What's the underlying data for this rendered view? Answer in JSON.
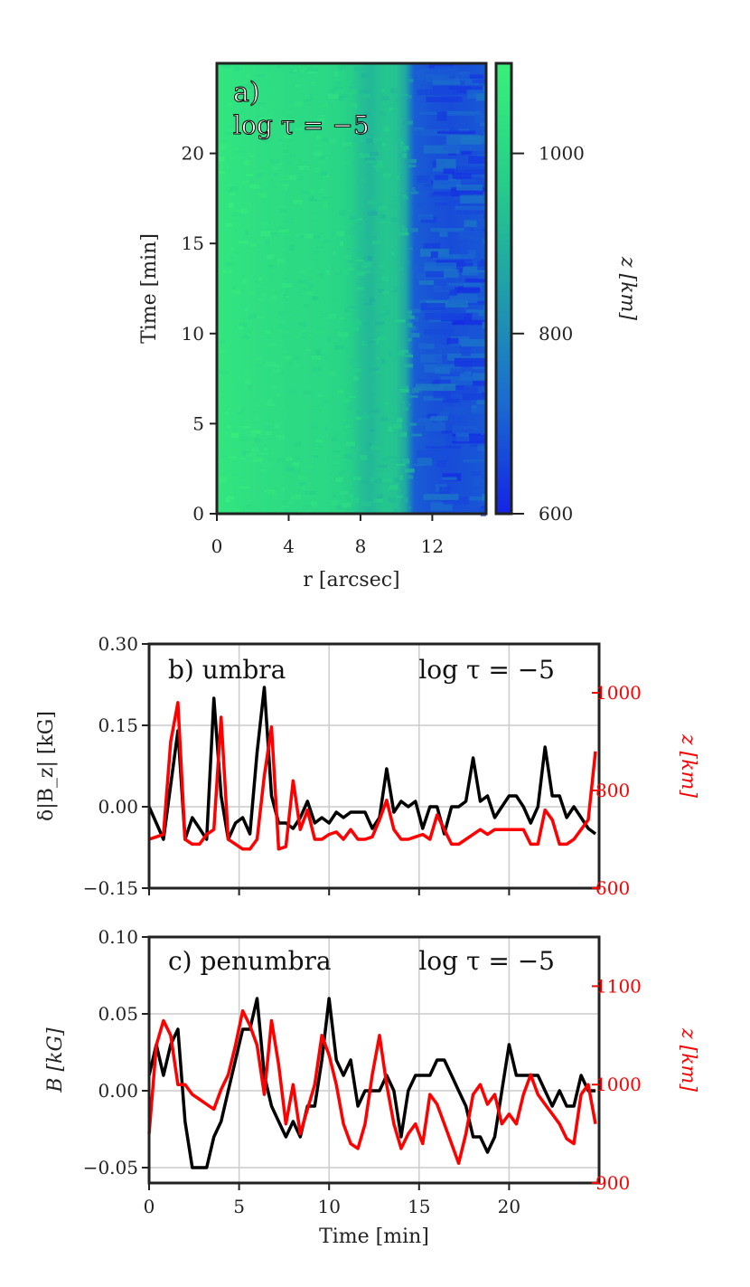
{
  "chart_data": [
    {
      "type": "heatmap",
      "panel_label": "a)",
      "annotation": "log τ = −5",
      "xlabel": "r [arcsec]",
      "ylabel": "Time [min]",
      "x_ticks": [
        0,
        4,
        8,
        12
      ],
      "y_ticks": [
        0,
        5,
        10,
        15,
        20
      ],
      "xlim": [
        0,
        15
      ],
      "ylim": [
        0,
        25
      ],
      "colorbar": {
        "label": "z [km]",
        "range": [
          600,
          1100
        ],
        "ticks": [
          600,
          800,
          1000
        ],
        "colors": [
          "#1424e6",
          "#1a6ccf",
          "#1fa0a8",
          "#26d088",
          "#3af07a"
        ]
      },
      "profile_r": [
        0,
        1,
        2,
        3,
        4,
        5,
        6,
        7,
        7.8,
        8.3,
        8.8,
        9.5,
        10.2,
        10.6,
        11,
        12,
        13,
        14,
        15
      ],
      "profile_z": [
        1060,
        1045,
        1035,
        1025,
        1015,
        1010,
        1005,
        990,
        960,
        900,
        930,
        950,
        930,
        850,
        700,
        680,
        670,
        680,
        690
      ]
    },
    {
      "type": "line",
      "panel_label": "b) umbra",
      "annotation": "log τ = −5",
      "xlabel": "",
      "ylabel": "δ|B_z| [kG]",
      "ylabel_right": "z [km]",
      "xlim": [
        0,
        25
      ],
      "ylim": [
        -0.15,
        0.3
      ],
      "ylim_right": [
        600,
        1100
      ],
      "x_ticks": [
        0,
        5,
        10,
        15,
        20
      ],
      "y_ticks": [
        -0.15,
        0.0,
        0.15,
        0.3
      ],
      "y_tick_labels": [
        "−0.15",
        "0.00",
        "0.15",
        "0.30"
      ],
      "y_right_ticks": [
        600,
        800,
        1000
      ],
      "series": [
        {
          "name": "δ|B_z|",
          "color": "#000000",
          "axis": "left",
          "x": [
            0,
            0.4,
            0.8,
            1.2,
            1.6,
            2.0,
            2.4,
            2.8,
            3.2,
            3.6,
            4.0,
            4.4,
            4.8,
            5.2,
            5.6,
            6.0,
            6.4,
            6.8,
            7.2,
            7.6,
            8.0,
            8.4,
            8.8,
            9.2,
            9.6,
            10.0,
            10.4,
            10.8,
            11.2,
            11.6,
            12.0,
            12.4,
            12.8,
            13.2,
            13.6,
            14.0,
            14.4,
            14.8,
            15.2,
            15.6,
            16.0,
            16.4,
            16.8,
            17.2,
            17.6,
            18.0,
            18.4,
            18.8,
            19.2,
            19.6,
            20.0,
            20.4,
            20.8,
            21.2,
            21.6,
            22.0,
            22.4,
            22.8,
            23.2,
            23.6,
            24.0,
            24.4,
            24.8
          ],
          "values": [
            0.0,
            -0.03,
            -0.06,
            0.04,
            0.14,
            -0.06,
            -0.02,
            -0.04,
            -0.06,
            0.2,
            0.02,
            -0.06,
            -0.03,
            -0.02,
            -0.05,
            0.1,
            0.22,
            0.02,
            -0.03,
            -0.03,
            -0.04,
            -0.02,
            0.01,
            -0.03,
            -0.02,
            -0.03,
            -0.01,
            -0.02,
            -0.01,
            -0.01,
            -0.01,
            -0.04,
            -0.02,
            0.07,
            -0.01,
            0.01,
            0.0,
            0.01,
            -0.04,
            0.0,
            0.0,
            -0.05,
            0.0,
            0.0,
            0.01,
            0.09,
            0.01,
            0.02,
            -0.02,
            0.0,
            0.02,
            0.02,
            0.0,
            -0.03,
            0.0,
            0.11,
            0.02,
            0.02,
            -0.02,
            0.0,
            -0.02,
            -0.04,
            -0.05
          ]
        },
        {
          "name": "z",
          "color": "#ff0000",
          "axis": "right",
          "x": [
            0,
            0.4,
            0.8,
            1.2,
            1.6,
            2.0,
            2.4,
            2.8,
            3.2,
            3.6,
            4.0,
            4.4,
            4.8,
            5.2,
            5.6,
            6.0,
            6.4,
            6.8,
            7.2,
            7.6,
            8.0,
            8.4,
            8.8,
            9.2,
            9.6,
            10.0,
            10.4,
            10.8,
            11.2,
            11.6,
            12.0,
            12.4,
            12.8,
            13.2,
            13.6,
            14.0,
            14.4,
            14.8,
            15.2,
            15.6,
            16.0,
            16.4,
            16.8,
            17.2,
            17.6,
            18.0,
            18.4,
            18.8,
            19.2,
            19.6,
            20.0,
            20.4,
            20.8,
            21.2,
            21.6,
            22.0,
            22.4,
            22.8,
            23.2,
            23.6,
            24.0,
            24.4,
            24.8
          ],
          "values": [
            700,
            705,
            710,
            900,
            980,
            700,
            690,
            690,
            710,
            720,
            950,
            700,
            690,
            680,
            680,
            700,
            830,
            930,
            680,
            685,
            820,
            720,
            760,
            700,
            700,
            710,
            715,
            700,
            720,
            700,
            700,
            705,
            740,
            780,
            720,
            700,
            700,
            705,
            710,
            700,
            750,
            720,
            690,
            690,
            700,
            710,
            720,
            710,
            720,
            720,
            720,
            720,
            720,
            690,
            690,
            760,
            740,
            690,
            690,
            700,
            720,
            740,
            880
          ]
        }
      ]
    },
    {
      "type": "line",
      "panel_label": "c) penumbra",
      "annotation": "log τ = −5",
      "xlabel": "Time [min]",
      "ylabel": "B [kG]",
      "ylabel_right": "z [km]",
      "xlim": [
        0,
        25
      ],
      "ylim": [
        -0.06,
        0.1
      ],
      "ylim_right": [
        900,
        1150
      ],
      "x_ticks": [
        0,
        5,
        10,
        15,
        20
      ],
      "x_tick_labels": [
        "0",
        "5",
        "10",
        "15",
        "20"
      ],
      "y_ticks": [
        -0.05,
        0.0,
        0.05,
        0.1
      ],
      "y_tick_labels": [
        "−0.05",
        "0.00",
        "0.05",
        "0.10"
      ],
      "y_right_ticks": [
        900,
        1000,
        1100
      ],
      "series": [
        {
          "name": "B",
          "color": "#000000",
          "axis": "left",
          "x": [
            0,
            0.4,
            0.8,
            1.2,
            1.6,
            2.0,
            2.4,
            2.8,
            3.2,
            3.6,
            4.0,
            4.4,
            4.8,
            5.2,
            5.6,
            6.0,
            6.4,
            6.8,
            7.2,
            7.6,
            8.0,
            8.4,
            8.8,
            9.2,
            9.6,
            10.0,
            10.4,
            10.8,
            11.2,
            11.6,
            12.0,
            12.4,
            12.8,
            13.2,
            13.6,
            14.0,
            14.4,
            14.8,
            15.2,
            15.6,
            16.0,
            16.4,
            16.8,
            17.2,
            17.6,
            18.0,
            18.4,
            18.8,
            19.2,
            19.6,
            20.0,
            20.4,
            20.8,
            21.2,
            21.6,
            22.0,
            22.4,
            22.8,
            23.2,
            23.6,
            24.0,
            24.4,
            24.8
          ],
          "values": [
            0.01,
            0.03,
            0.01,
            0.03,
            0.04,
            -0.02,
            -0.05,
            -0.05,
            -0.05,
            -0.03,
            -0.02,
            0.0,
            0.02,
            0.04,
            0.04,
            0.06,
            0.01,
            -0.01,
            -0.02,
            -0.03,
            -0.02,
            -0.03,
            -0.01,
            -0.01,
            0.02,
            0.06,
            0.02,
            0.01,
            0.02,
            -0.01,
            0.0,
            0.0,
            0.0,
            0.01,
            0.0,
            -0.03,
            0.0,
            0.01,
            0.01,
            0.01,
            0.02,
            0.02,
            0.01,
            0.0,
            -0.01,
            -0.03,
            -0.03,
            -0.04,
            -0.03,
            0.0,
            0.03,
            0.01,
            0.01,
            0.01,
            0.01,
            0.0,
            -0.01,
            0.0,
            -0.01,
            -0.01,
            0.01,
            0.0,
            0.0
          ]
        },
        {
          "name": "z",
          "color": "#ff0000",
          "axis": "right",
          "x": [
            0,
            0.4,
            0.8,
            1.2,
            1.6,
            2.0,
            2.4,
            2.8,
            3.2,
            3.6,
            4.0,
            4.4,
            4.8,
            5.2,
            5.6,
            6.0,
            6.4,
            6.8,
            7.2,
            7.6,
            8.0,
            8.4,
            8.8,
            9.2,
            9.6,
            10.0,
            10.4,
            10.8,
            11.2,
            11.6,
            12.0,
            12.4,
            12.8,
            13.2,
            13.6,
            14.0,
            14.4,
            14.8,
            15.2,
            15.6,
            16.0,
            16.4,
            16.8,
            17.2,
            17.6,
            18.0,
            18.4,
            18.8,
            19.2,
            19.6,
            20.0,
            20.4,
            20.8,
            21.2,
            21.6,
            22.0,
            22.4,
            22.8,
            23.2,
            23.6,
            24.0,
            24.4,
            24.8
          ],
          "values": [
            950,
            1040,
            1065,
            1050,
            1000,
            1000,
            990,
            985,
            980,
            975,
            995,
            1010,
            1040,
            1075,
            1060,
            1040,
            990,
            1065,
            1020,
            960,
            1000,
            950,
            975,
            1000,
            1050,
            1030,
            1000,
            960,
            940,
            935,
            960,
            1010,
            1050,
            1000,
            960,
            935,
            950,
            960,
            940,
            990,
            980,
            960,
            940,
            920,
            950,
            990,
            1000,
            980,
            990,
            960,
            970,
            960,
            990,
            1010,
            990,
            980,
            970,
            960,
            945,
            940,
            990,
            1000,
            960
          ]
        }
      ]
    }
  ]
}
